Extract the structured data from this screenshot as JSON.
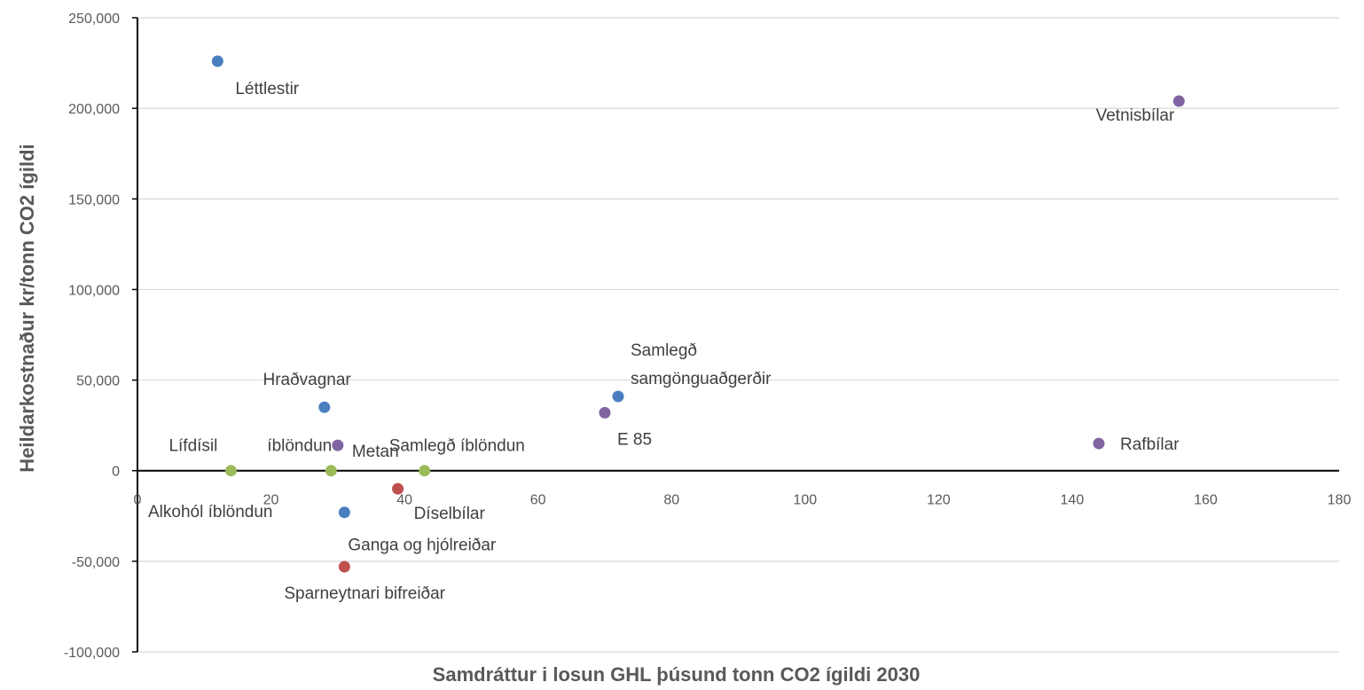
{
  "chart_data": {
    "type": "scatter",
    "title": "",
    "xlabel": "Samdráttur i losun GHL þúsund tonn CO2 ígildi  2030",
    "ylabel": "Heildarkostnaður kr/tonn CO2 ígildi",
    "xlim": [
      0,
      180
    ],
    "ylim": [
      -100000,
      250000
    ],
    "x_ticks": [
      "0",
      "20",
      "40",
      "60",
      "80",
      "100",
      "120",
      "140",
      "160",
      "180"
    ],
    "y_ticks": [
      "250,000",
      "200,000",
      "150,000",
      "100,000",
      "50,000",
      "0",
      "-50,000",
      "-100,000"
    ],
    "grid": true,
    "legend": "none",
    "points": [
      {
        "label": "Léttlestir",
        "x": 12,
        "y": 226000,
        "color": "#4a7ebf"
      },
      {
        "label": "Hraðvagnar",
        "x": 28,
        "y": 35000,
        "color": "#4a7ebf"
      },
      {
        "label": "Samlegð samgönguaðgerðir",
        "label_lines": [
          "Samlegð",
          "samgönguaðgerðir"
        ],
        "x": 72,
        "y": 41000,
        "color": "#4a7ebf"
      },
      {
        "label": "Ganga og hjólreiðar",
        "x": 31,
        "y": -23000,
        "color": "#4a7ebf"
      },
      {
        "label": "Vetnisbílar",
        "x": 156,
        "y": 204000,
        "color": "#8064a2"
      },
      {
        "label": "Metan",
        "x": 30,
        "y": 14000,
        "color": "#8064a2"
      },
      {
        "label": "E 85",
        "x": 70,
        "y": 32000,
        "color": "#8064a2"
      },
      {
        "label": "Rafbílar",
        "x": 144,
        "y": 15000,
        "color": "#8064a2"
      },
      {
        "label": "Lífdísil",
        "x": 14,
        "y": 0,
        "color": "#9bbb59"
      },
      {
        "label": "íblöndun",
        "x": 29,
        "y": 0,
        "color": "#9bbb59"
      },
      {
        "label": "Samlegð íblöndun",
        "x": 43,
        "y": 0,
        "color": "#9bbb59"
      },
      {
        "label": "Alkohól íblöndun",
        "x": 0,
        "y": -1000,
        "color": "#9bbb59"
      },
      {
        "label": "Díselbílar",
        "x": 39,
        "y": -10000,
        "color": "#c0504d"
      },
      {
        "label": "Sparneytnari bifreiðar",
        "x": 31,
        "y": -53000,
        "color": "#c0504d"
      }
    ]
  }
}
